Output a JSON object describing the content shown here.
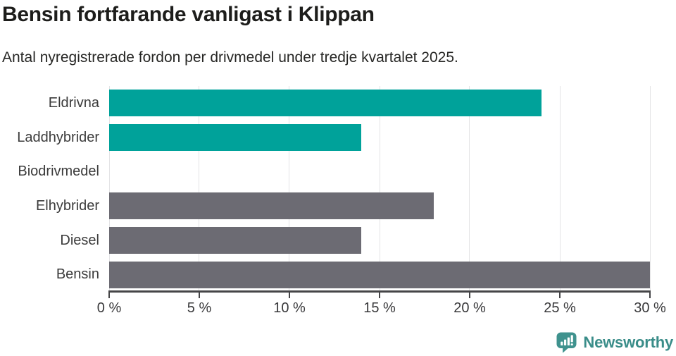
{
  "chart": {
    "title": "Bensin fortfarande vanligast i Klippan",
    "subtitle": "Antal nyregistrerade fordon per drivmedel under tredje kvartalet 2025."
  },
  "chart_data": {
    "type": "bar",
    "orientation": "horizontal",
    "title": "Bensin fortfarande vanligast i Klippan",
    "subtitle": "Antal nyregistrerade fordon per drivmedel under tredje kvartalet 2025.",
    "categories": [
      "Eldrivna",
      "Laddhybrider",
      "Biodrivmedel",
      "Elhybrider",
      "Diesel",
      "Bensin"
    ],
    "values": [
      24,
      14,
      0,
      18,
      14,
      30
    ],
    "value_unit": "%",
    "bar_colors": [
      "#00a29a",
      "#00a29a",
      "#6c6b73",
      "#6c6b73",
      "#6c6b73",
      "#6c6b73"
    ],
    "xlim": [
      0,
      30
    ],
    "tick_values": [
      0,
      5,
      10,
      15,
      20,
      25,
      30
    ],
    "tick_labels": [
      "0 %",
      "5 %",
      "10 %",
      "15 %",
      "20 %",
      "25 %",
      "30 %"
    ],
    "grid": true,
    "legend": "none"
  },
  "colors": {
    "accent_teal": "#00a29a",
    "bar_gray": "#6c6b73",
    "gridline": "#e4e4e6",
    "axis": "#454547",
    "logo_teal": "#3a8d89"
  },
  "branding": {
    "logo_text": "Newsworthy"
  }
}
